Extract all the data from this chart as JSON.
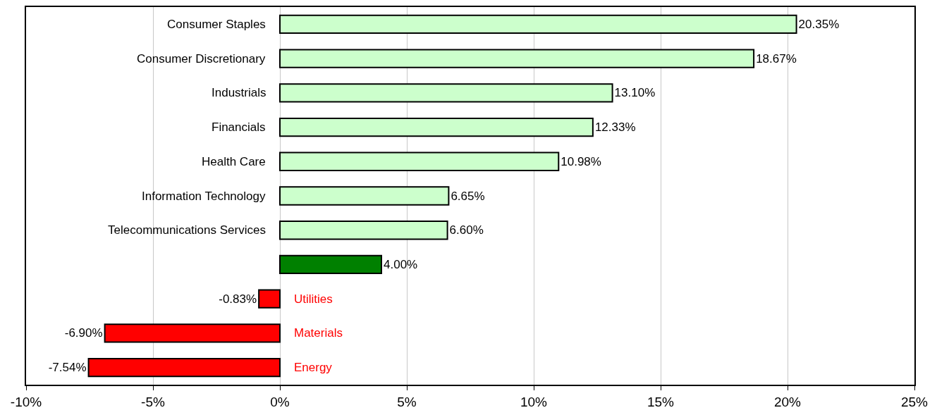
{
  "chart_data": {
    "type": "bar",
    "orientation": "horizontal",
    "categories": [
      "Consumer Staples",
      "Consumer Discretionary",
      "Industrials",
      "Financials",
      "Health Care",
      "Information Technology",
      "Telecommunications Services",
      null,
      "Utilities",
      "Materials",
      "Energy"
    ],
    "values": [
      20.35,
      18.67,
      13.1,
      12.33,
      10.98,
      6.65,
      6.6,
      4.0,
      -0.83,
      -6.9,
      -7.54
    ],
    "value_labels": [
      "20.35%",
      "18.67%",
      "13.10%",
      "12.33%",
      "10.98%",
      "6.65%",
      "6.60%",
      "4.00%",
      "-0.83%",
      "-6.90%",
      "-7.54%"
    ],
    "colors": [
      "#ccffcc",
      "#ccffcc",
      "#ccffcc",
      "#ccffcc",
      "#ccffcc",
      "#ccffcc",
      "#ccffcc",
      "#008000",
      "#ff0000",
      "#ff0000",
      "#ff0000"
    ],
    "xlim": [
      -10,
      25
    ],
    "xticks": [
      {
        "value": -10,
        "label": "-10%"
      },
      {
        "value": -5,
        "label": "-5%"
      },
      {
        "value": 0,
        "label": "0%"
      },
      {
        "value": 5,
        "label": "5%"
      },
      {
        "value": 10,
        "label": "10%"
      },
      {
        "value": 15,
        "label": "15%"
      },
      {
        "value": 20,
        "label": "20%"
      },
      {
        "value": 25,
        "label": "25%"
      }
    ],
    "grid": "x",
    "tick_labels": "x",
    "legend": false
  }
}
